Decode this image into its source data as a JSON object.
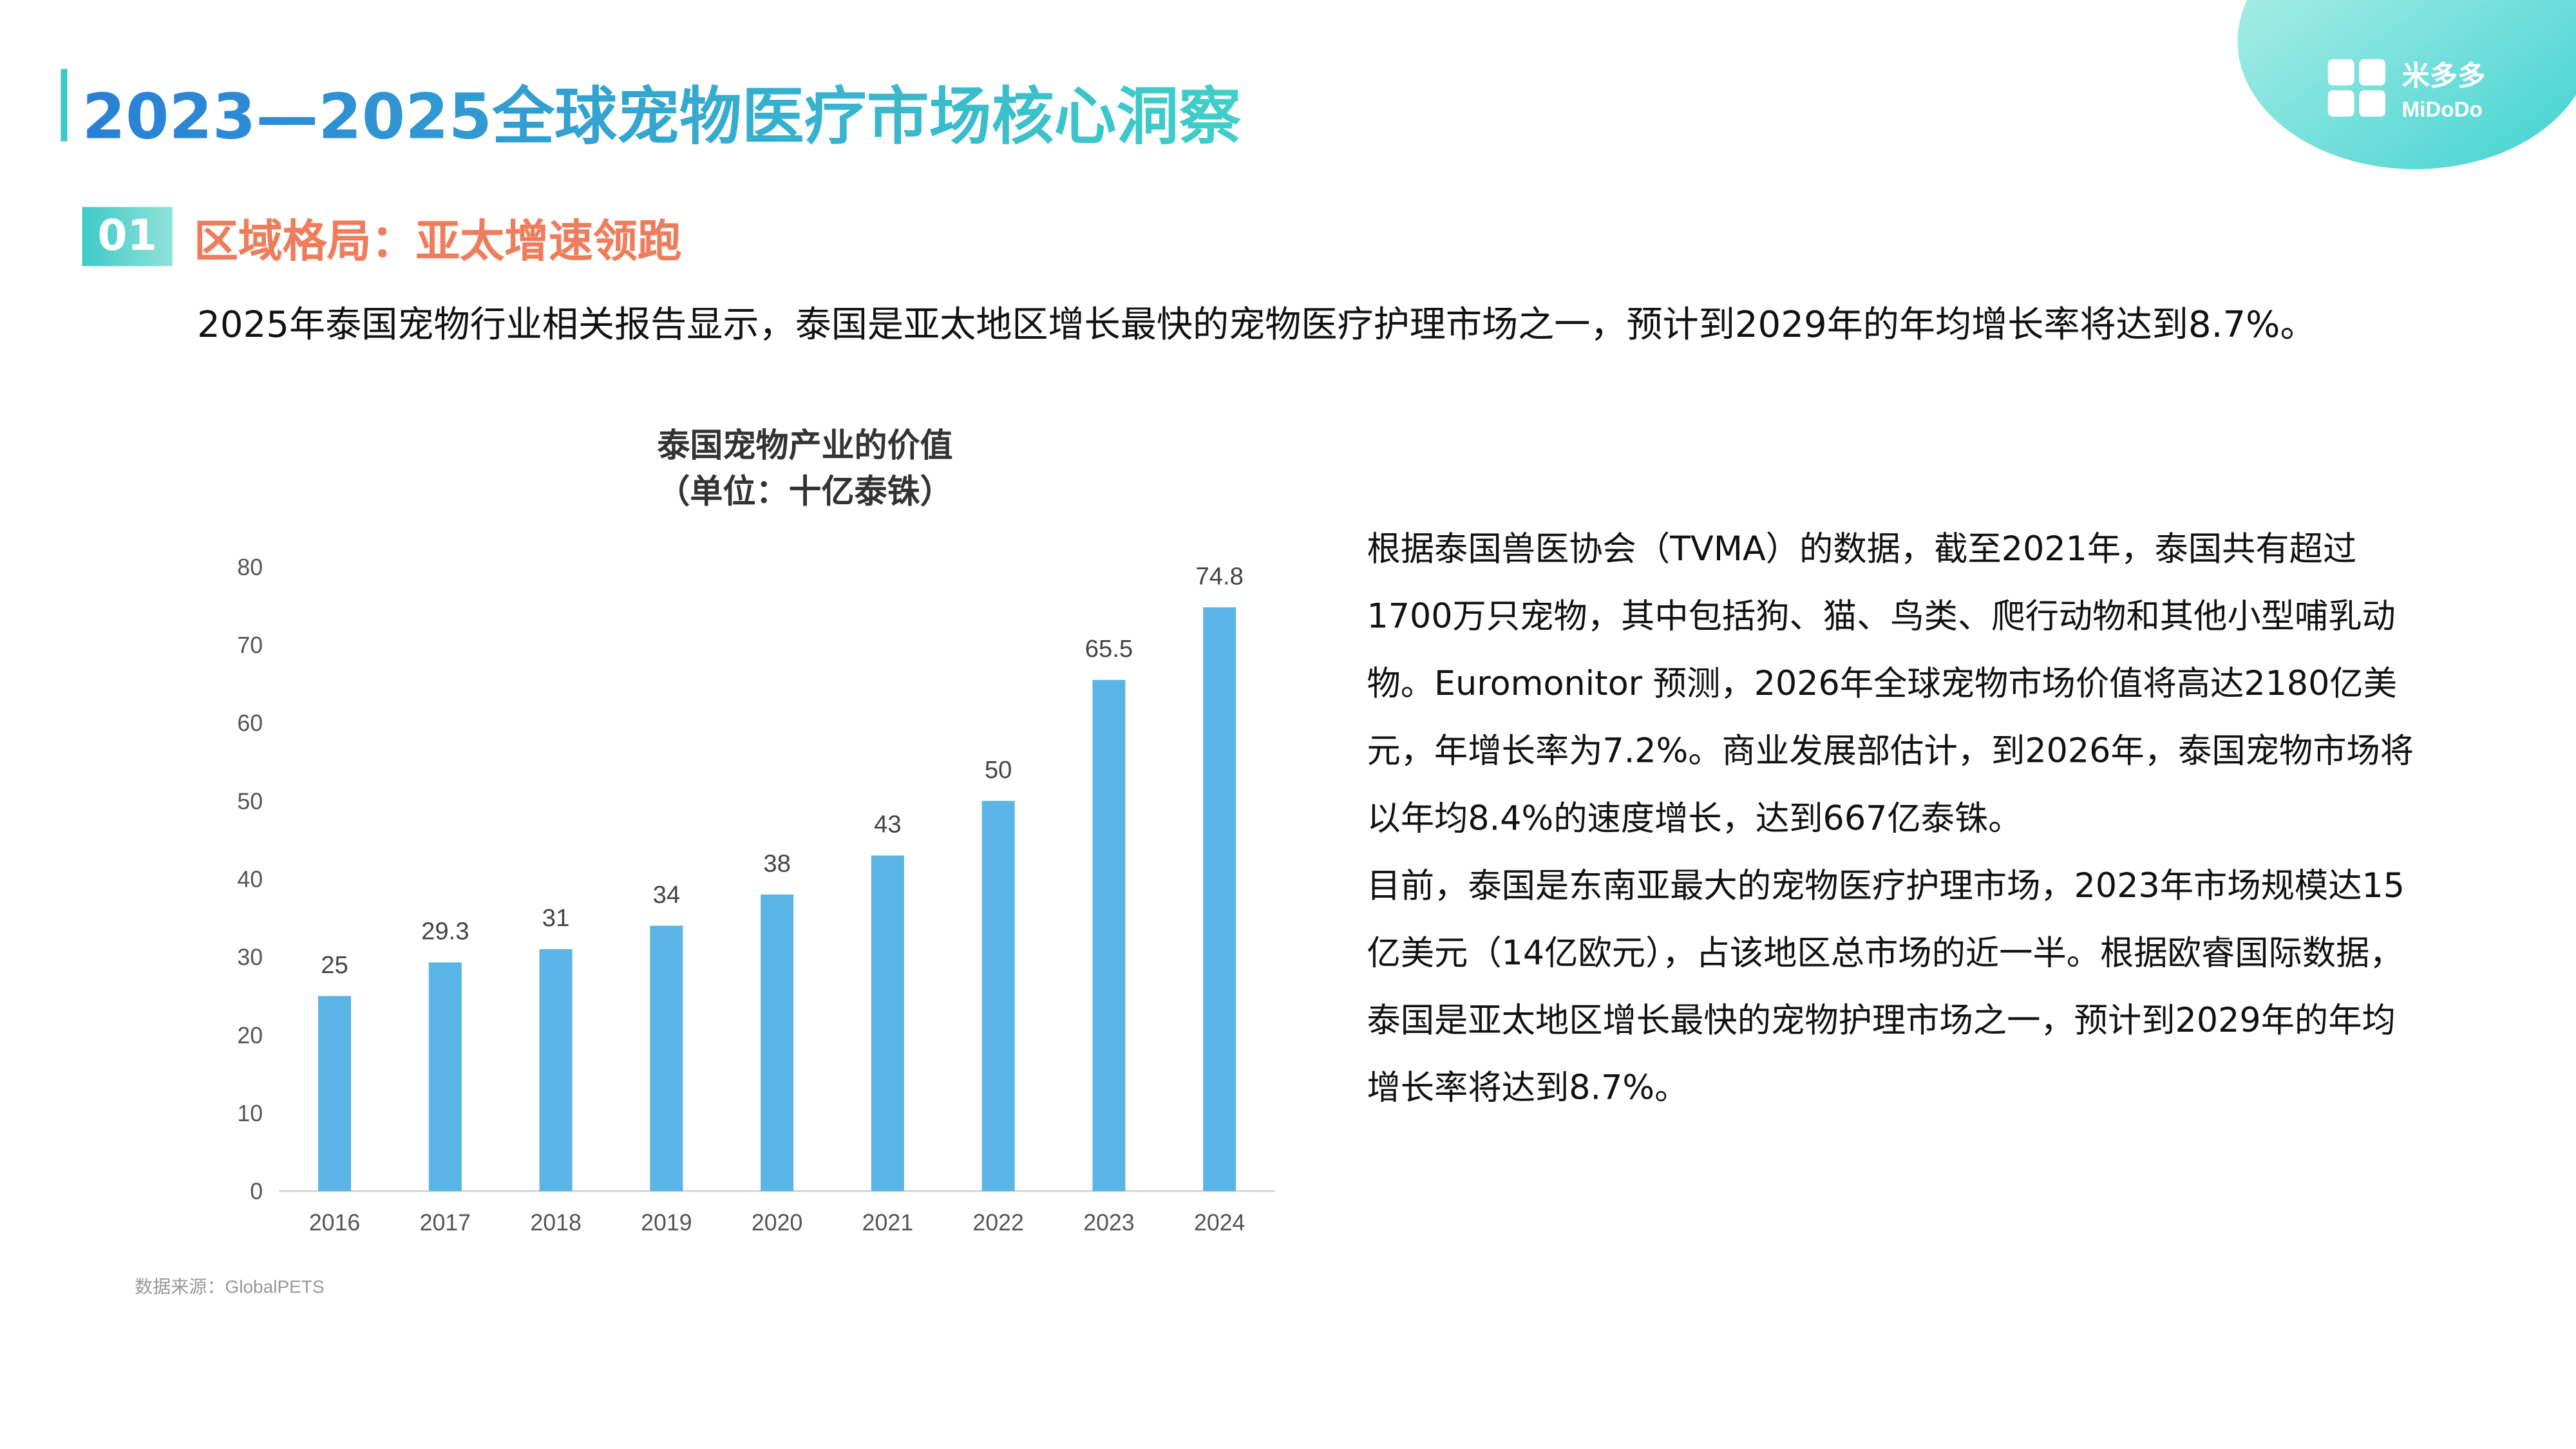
{
  "header": {
    "title": "2023—2025全球宠物医疗市场核心洞察",
    "logo_cn": "米多多",
    "logo_en": "MiDoDo"
  },
  "section": {
    "number": "01",
    "title": "区域格局：亚太增速领跑"
  },
  "intro": "2025年泰国宠物行业相关报告显示，泰国是亚太地区增长最快的宠物医疗护理市场之一，预计到2029年的年均增长率将达到8.7%。",
  "chart_data": {
    "type": "bar",
    "title": "泰国宠物产业的价值",
    "subtitle": "（单位：十亿泰铢）",
    "categories": [
      "2016",
      "2017",
      "2018",
      "2019",
      "2020",
      "2021",
      "2022",
      "2023",
      "2024"
    ],
    "values": [
      25,
      29.3,
      31,
      34,
      38,
      43,
      50,
      65.5,
      74.8
    ],
    "color": "#5ab4e5",
    "ylim": [
      0,
      80
    ],
    "yticks": [
      0,
      10,
      20,
      30,
      40,
      50,
      60,
      70,
      80
    ],
    "grid": false,
    "source": "数据来源：GlobalPETS"
  },
  "body": [
    "根据泰国兽医协会（TVMA）的数据，截至2021年，泰国共有超过1700万只宠物，其中包括狗、猫、鸟类、爬行动物和其他小型哺乳动物。Euromonitor 预测，2026年全球宠物市场价值将高达2180亿美元，年增长率为7.2%。商业发展部估计，到2026年，泰国宠物市场将以年均8.4%的速度增长，达到667亿泰铢。",
    "目前，泰国是东南亚最大的宠物医疗护理市场，2023年市场规模达15亿美元（14亿欧元），占该地区总市场的近一半。根据欧睿国际数据，泰国是亚太地区增长最快的宠物护理市场之一，预计到2029年的年均增长率将达到8.7%。"
  ]
}
